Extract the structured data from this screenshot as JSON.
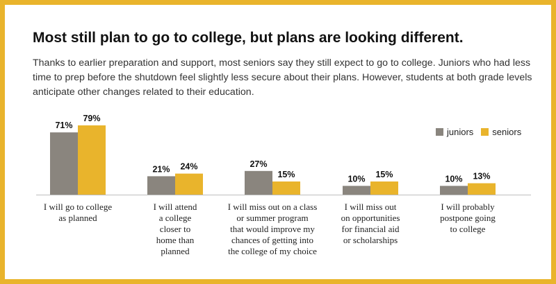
{
  "title": "Most still plan to go to college, but plans are looking different.",
  "subtitle": "Thanks to earlier preparation and support, most seniors say they still expect to go to college. Juniors who had less time to prep before the shutdown feel slightly less secure about their plans. However, students at both grade levels anticipate other changes related to their education.",
  "colors": {
    "juniors": "#8a857e",
    "seniors": "#e9b42c",
    "border": "#e9b42c"
  },
  "chart_data": {
    "type": "bar",
    "categories": [
      [
        "I will go to college",
        "as planned"
      ],
      [
        "I will attend",
        "a college",
        "closer to",
        "home than",
        "planned"
      ],
      [
        "I will miss out on a class",
        "or summer program",
        "that would improve my",
        "chances of getting into",
        "the college of my choice"
      ],
      [
        "I will miss out",
        "on opportunities",
        "for financial aid",
        "or scholarships"
      ],
      [
        "I will probably",
        "postpone going",
        "to college"
      ]
    ],
    "series": [
      {
        "name": "juniors",
        "values": [
          71,
          21,
          27,
          10,
          10
        ],
        "labels": [
          "71%",
          "21%",
          "27%",
          "10%",
          "10%"
        ]
      },
      {
        "name": "seniors",
        "values": [
          79,
          24,
          15,
          15,
          13
        ],
        "labels": [
          "79%",
          "24%",
          "15%",
          "15%",
          "13%"
        ]
      }
    ],
    "ylim": [
      0,
      79
    ],
    "legend_position": "top-right",
    "grid": false
  }
}
